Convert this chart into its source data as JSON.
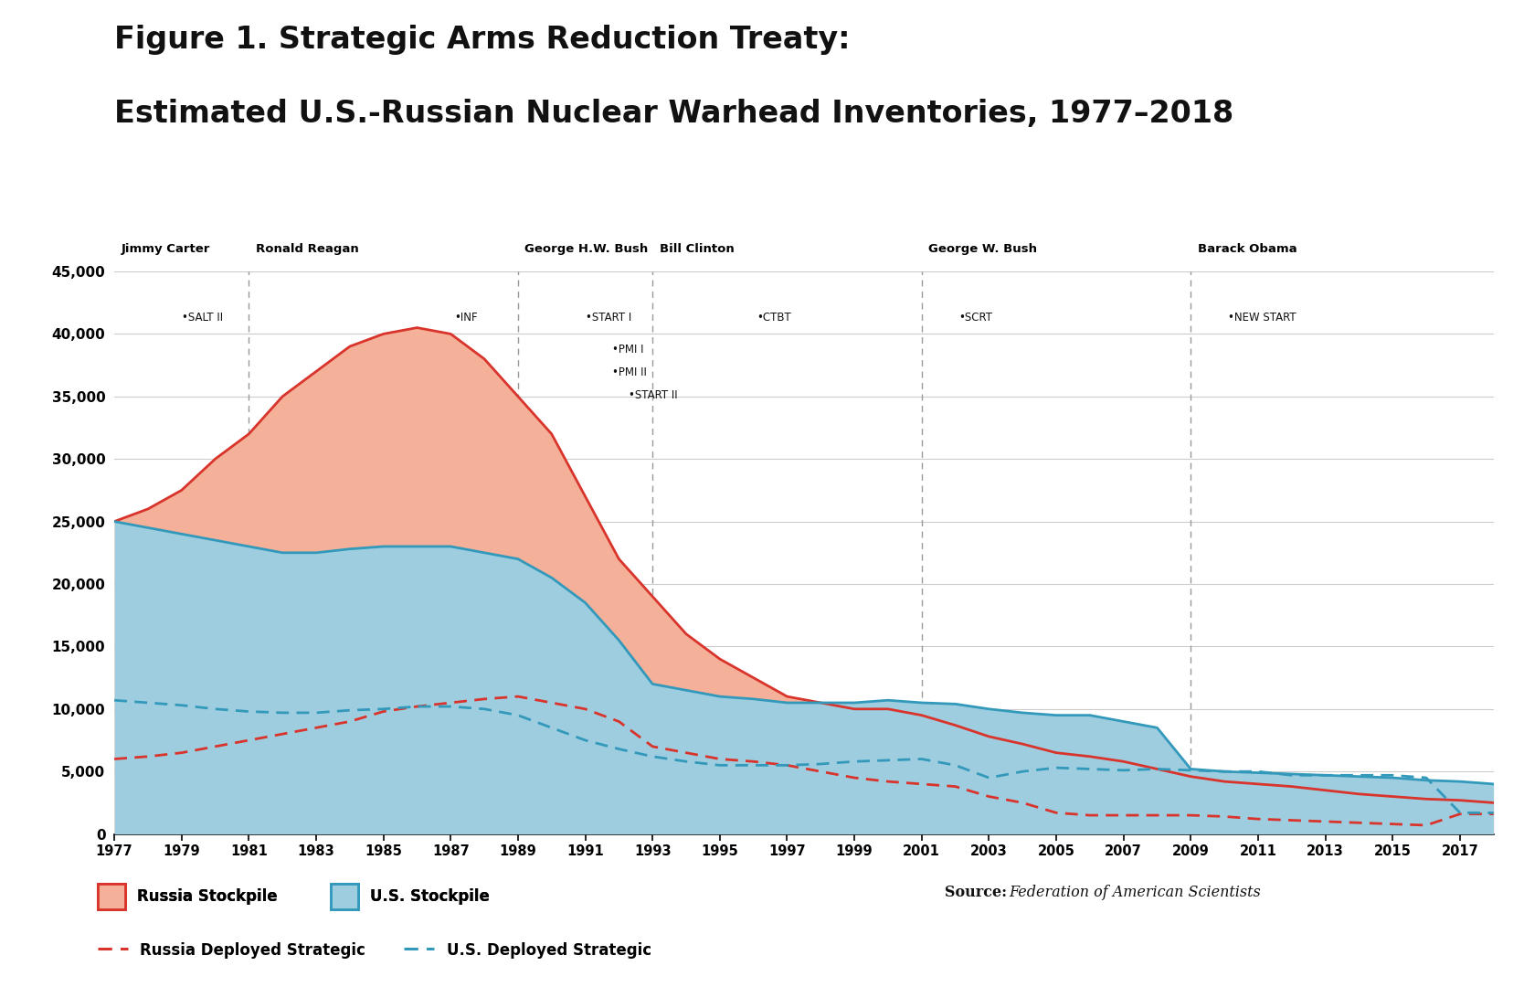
{
  "title_line1": "Figure 1. Strategic Arms Reduction Treaty:",
  "title_line2": "Estimated U.S.-Russian Nuclear Warhead Inventories, 1977–2018",
  "years": [
    1977,
    1978,
    1979,
    1980,
    1981,
    1982,
    1983,
    1984,
    1985,
    1986,
    1987,
    1988,
    1989,
    1990,
    1991,
    1992,
    1993,
    1994,
    1995,
    1996,
    1997,
    1998,
    1999,
    2000,
    2001,
    2002,
    2003,
    2004,
    2005,
    2006,
    2007,
    2008,
    2009,
    2010,
    2011,
    2012,
    2013,
    2014,
    2015,
    2016,
    2017,
    2018
  ],
  "russia_stockpile": [
    25000,
    26000,
    27500,
    30000,
    32000,
    35000,
    37000,
    39000,
    40000,
    40500,
    40000,
    38000,
    35000,
    32000,
    27000,
    22000,
    19000,
    16000,
    14000,
    12500,
    11000,
    10500,
    10000,
    10000,
    9500,
    8700,
    7800,
    7200,
    6500,
    6200,
    5800,
    5200,
    4600,
    4200,
    4000,
    3800,
    3500,
    3200,
    3000,
    2800,
    2700,
    2500
  ],
  "us_stockpile": [
    25000,
    24500,
    24000,
    23500,
    23000,
    22500,
    22500,
    22800,
    23000,
    23000,
    23000,
    22500,
    22000,
    20500,
    18500,
    15500,
    12000,
    11500,
    11000,
    10800,
    10500,
    10500,
    10500,
    10700,
    10500,
    10400,
    10000,
    9700,
    9500,
    9500,
    9000,
    8500,
    5200,
    5000,
    4900,
    4800,
    4700,
    4600,
    4500,
    4300,
    4200,
    4000
  ],
  "russia_deployed": [
    6000,
    6200,
    6500,
    7000,
    7500,
    8000,
    8500,
    9000,
    9800,
    10200,
    10500,
    10800,
    11000,
    10500,
    10000,
    9000,
    7000,
    6500,
    6000,
    5800,
    5500,
    5000,
    4500,
    4200,
    4000,
    3800,
    3000,
    2500,
    1700,
    1500,
    1500,
    1500,
    1500,
    1400,
    1200,
    1100,
    1000,
    900,
    800,
    700,
    1600,
    1600
  ],
  "us_deployed": [
    10700,
    10500,
    10300,
    10000,
    9800,
    9700,
    9700,
    9900,
    10000,
    10200,
    10200,
    10000,
    9500,
    8500,
    7500,
    6800,
    6200,
    5800,
    5500,
    5500,
    5500,
    5600,
    5800,
    5900,
    6000,
    5500,
    4500,
    5000,
    5300,
    5200,
    5100,
    5200,
    5100,
    5000,
    5000,
    4700,
    4700,
    4700,
    4700,
    4500,
    1700,
    1700
  ],
  "russia_stockpile_fill": "#f5b09a",
  "russia_stockpile_line": "#d9342b",
  "us_stockpile_fill": "#9ecde0",
  "us_stockpile_line": "#3399bb",
  "russia_deployed_color": "#d9342b",
  "us_deployed_color": "#3399bb",
  "president_vlines": [
    1981,
    1989,
    1993,
    2001,
    2009
  ],
  "president_labels": [
    "Jimmy Carter",
    "Ronald Reagan",
    "George H.W. Bush",
    "Bill Clinton",
    "George W. Bush",
    "Barack Obama"
  ],
  "president_label_years": [
    1977.2,
    1981.2,
    1989.2,
    1993.2,
    2001.2,
    2009.2
  ],
  "treaty_annotations": [
    {
      "year": 1979.0,
      "label": "•SALT II",
      "y": 41800
    },
    {
      "year": 1987.1,
      "label": "•INF",
      "y": 41800
    },
    {
      "year": 1991.0,
      "label": "•START I",
      "y": 41800
    },
    {
      "year": 1991.8,
      "label": "•PMI I",
      "y": 39200
    },
    {
      "year": 1991.8,
      "label": "•PMI II",
      "y": 37400
    },
    {
      "year": 1992.3,
      "label": "•START II",
      "y": 35600
    },
    {
      "year": 1996.1,
      "label": "•CTBT",
      "y": 41800
    },
    {
      "year": 2002.1,
      "label": "•SCRT",
      "y": 41800
    },
    {
      "year": 2010.1,
      "label": "•NEW START",
      "y": 41800
    }
  ],
  "ylim": [
    0,
    45000
  ],
  "yticks": [
    0,
    5000,
    10000,
    15000,
    20000,
    25000,
    30000,
    35000,
    40000,
    45000
  ],
  "xlim": [
    1977,
    2018
  ],
  "background_color": "#ffffff",
  "grid_color": "#cccccc",
  "source_bold": "Source:",
  "source_italic": "Federation of American Scientists"
}
